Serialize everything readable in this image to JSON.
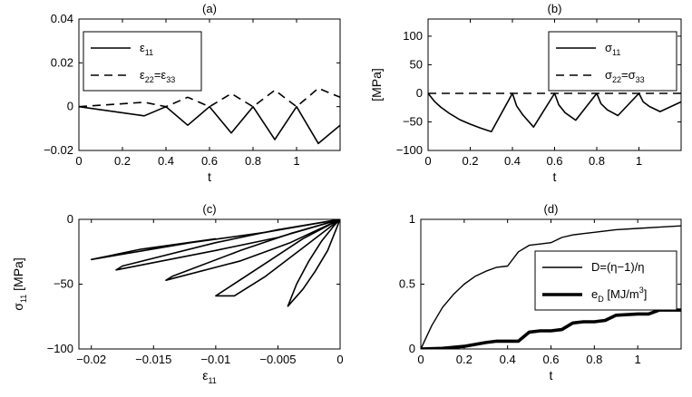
{
  "chart_data": [
    {
      "type": "line",
      "title": "(a)",
      "xlabel": "t",
      "ylabel": "",
      "xlim": [
        0,
        1.2
      ],
      "ylim": [
        -0.02,
        0.04
      ],
      "xticks": [
        0,
        0.2,
        0.4,
        0.6,
        0.8,
        1
      ],
      "yticks": [
        -0.02,
        0,
        0.02,
        0.04
      ],
      "xticklabels": [
        "0",
        "0.2",
        "0.4",
        "0.6",
        "0.8",
        "1"
      ],
      "yticklabels": [
        "−0.02",
        "0",
        "0.02",
        "0.04"
      ],
      "legend_position": "top-left",
      "series": [
        {
          "name": "ε11",
          "legend_main": "ε",
          "legend_sub": "11",
          "style": "solid",
          "width": 1.6,
          "x": [
            0,
            0.3,
            0.4,
            0.5,
            0.6,
            0.7,
            0.8,
            0.9,
            1.0,
            1.1,
            1.2
          ],
          "y": [
            0,
            -0.0042,
            0,
            -0.0085,
            0,
            -0.012,
            0,
            -0.015,
            0,
            -0.0168,
            -0.0085
          ]
        },
        {
          "name": "ε22=ε33",
          "legend_main": "ε",
          "legend_sub": "22",
          "legend_mid": "=ε",
          "legend_sub2": "33",
          "style": "dashed",
          "width": 1.6,
          "x": [
            0,
            0.3,
            0.4,
            0.5,
            0.6,
            0.7,
            0.8,
            0.9,
            1.0,
            1.1,
            1.2
          ],
          "y": [
            0,
            0.002,
            0,
            0.0043,
            0,
            0.006,
            0,
            0.0075,
            0,
            0.0084,
            0.0043
          ]
        }
      ]
    },
    {
      "type": "line",
      "title": "(b)",
      "xlabel": "t",
      "ylabel": "[MPa]",
      "xlim": [
        0,
        1.2
      ],
      "ylim": [
        -100,
        130
      ],
      "xticks": [
        0,
        0.2,
        0.4,
        0.6,
        0.8,
        1
      ],
      "yticks": [
        -100,
        -50,
        0,
        50,
        100
      ],
      "xticklabels": [
        "0",
        "0.2",
        "0.4",
        "0.6",
        "0.8",
        "1"
      ],
      "yticklabels": [
        "−100",
        "−50",
        "0",
        "50",
        "100"
      ],
      "legend_position": "top-right",
      "series": [
        {
          "name": "σ11",
          "legend_main": "σ",
          "legend_sub": "11",
          "style": "solid",
          "width": 1.6,
          "x": [
            0,
            0.03,
            0.06,
            0.1,
            0.15,
            0.2,
            0.25,
            0.3,
            0.4,
            0.42,
            0.45,
            0.5,
            0.6,
            0.62,
            0.65,
            0.7,
            0.8,
            0.82,
            0.85,
            0.9,
            1.0,
            1.02,
            1.05,
            1.1,
            1.2
          ],
          "y": [
            0,
            -14,
            -24,
            -35,
            -46,
            -54,
            -61,
            -67,
            0,
            -22,
            -38,
            -59,
            0,
            -20,
            -34,
            -47,
            0,
            -18,
            -29,
            -39,
            0,
            -15,
            -23,
            -32,
            -15
          ]
        },
        {
          "name": "σ22=σ33",
          "legend_main": "σ",
          "legend_sub": "22",
          "legend_mid": "=σ",
          "legend_sub2": "33",
          "style": "dashed",
          "width": 1.6,
          "x": [
            0,
            1.2
          ],
          "y": [
            0,
            0
          ]
        }
      ]
    },
    {
      "type": "line",
      "title": "(c)",
      "xlabel": "ε11",
      "xlabel_main": "ε",
      "xlabel_sub": "11",
      "ylabel": "σ11 [MPa]",
      "ylabel_main": "σ",
      "ylabel_sub": "11",
      "ylabel_rest": " [MPa]",
      "xlim": [
        -0.021,
        0
      ],
      "ylim": [
        -100,
        0
      ],
      "xticks": [
        -0.02,
        -0.015,
        -0.01,
        -0.005,
        0
      ],
      "yticks": [
        -100,
        -50,
        0
      ],
      "xticklabels": [
        "−0.02",
        "−0.015",
        "−0.01",
        "−0.005",
        "0"
      ],
      "yticklabels": [
        "−100",
        "−50",
        "0"
      ],
      "series": [
        {
          "name": "σ11-ε11 loop 1",
          "style": "solid",
          "width": 1.6,
          "x": [
            0,
            -0.001,
            -0.002,
            -0.003,
            -0.0042,
            -0.0035,
            -0.0025,
            -0.0015,
            -0.0005,
            0
          ],
          "y": [
            0,
            -24,
            -40,
            -54,
            -67,
            -50,
            -32,
            -17,
            -5,
            0
          ]
        },
        {
          "name": "σ11-ε11 loop 2",
          "style": "solid",
          "width": 1.6,
          "x": [
            0,
            -0.003,
            -0.006,
            -0.0085,
            -0.0095,
            -0.01,
            -0.006,
            -0.003,
            0
          ],
          "y": [
            0,
            -22,
            -44,
            -59,
            -59,
            -59,
            -34,
            -15,
            0
          ]
        },
        {
          "name": "σ11-ε11 loop 3",
          "style": "solid",
          "width": 1.6,
          "x": [
            0,
            -0.004,
            -0.008,
            -0.014,
            -0.0135,
            -0.008,
            -0.004,
            0
          ],
          "y": [
            0,
            -18,
            -32,
            -47,
            -44,
            -24,
            -11,
            0
          ]
        },
        {
          "name": "σ11-ε11 loop 4",
          "style": "solid",
          "width": 1.6,
          "x": [
            0,
            -0.005,
            -0.01,
            -0.018,
            -0.0175,
            -0.01,
            -0.005,
            0
          ],
          "y": [
            0,
            -14,
            -24,
            -39,
            -36,
            -18,
            -8,
            0
          ]
        },
        {
          "name": "σ11-ε11 loop 5",
          "style": "solid",
          "width": 1.6,
          "x": [
            0,
            -0.006,
            -0.012,
            -0.02,
            -0.016,
            -0.01
          ],
          "y": [
            0,
            -10,
            -18,
            -31,
            -23,
            -15
          ]
        }
      ]
    },
    {
      "type": "line",
      "title": "(d)",
      "xlabel": "t",
      "ylabel": "",
      "xlim": [
        0,
        1.2
      ],
      "ylim": [
        0,
        1
      ],
      "xticks": [
        0,
        0.2,
        0.4,
        0.6,
        0.8,
        1
      ],
      "yticks": [
        0,
        0.5,
        1
      ],
      "xticklabels": [
        "0",
        "0.2",
        "0.4",
        "0.6",
        "0.8",
        "1"
      ],
      "yticklabels": [
        "0",
        "0.5",
        "1"
      ],
      "legend_position": "center-right",
      "series": [
        {
          "name": "D=(η−1)/η",
          "legend_main": "D=(η−1)/η",
          "style": "solid",
          "width": 1.4,
          "x": [
            0,
            0.05,
            0.1,
            0.15,
            0.2,
            0.25,
            0.3,
            0.35,
            0.4,
            0.45,
            0.5,
            0.55,
            0.6,
            0.65,
            0.7,
            0.75,
            0.8,
            0.9,
            1.0,
            1.1,
            1.2
          ],
          "y": [
            0,
            0.18,
            0.32,
            0.42,
            0.5,
            0.56,
            0.6,
            0.63,
            0.64,
            0.75,
            0.8,
            0.81,
            0.82,
            0.86,
            0.88,
            0.89,
            0.9,
            0.92,
            0.93,
            0.94,
            0.95
          ]
        },
        {
          "name": "eD [MJ/m3]",
          "legend_main": "e",
          "legend_sub": "D",
          "legend_mid": " [MJ/m",
          "legend_sup": "3",
          "legend_end": "]",
          "style": "solid",
          "width": 3.6,
          "x": [
            0,
            0.1,
            0.2,
            0.3,
            0.35,
            0.4,
            0.45,
            0.5,
            0.55,
            0.6,
            0.65,
            0.7,
            0.75,
            0.8,
            0.85,
            0.9,
            1.0,
            1.05,
            1.1,
            1.2
          ],
          "y": [
            0,
            0.005,
            0.02,
            0.05,
            0.06,
            0.06,
            0.06,
            0.13,
            0.14,
            0.14,
            0.15,
            0.2,
            0.21,
            0.21,
            0.22,
            0.26,
            0.27,
            0.27,
            0.3,
            0.3
          ]
        }
      ]
    }
  ]
}
